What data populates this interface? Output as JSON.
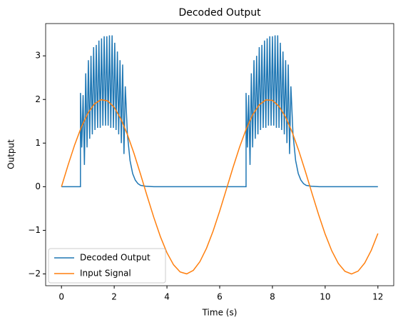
{
  "chart_data": {
    "type": "line",
    "title": "Decoded Output",
    "x_label": "Time (s)",
    "y_label": "Output",
    "xlim": [
      -0.6,
      12.6
    ],
    "ylim": [
      -2.27,
      3.74
    ],
    "xticks": [
      0,
      2,
      4,
      6,
      8,
      10,
      12
    ],
    "yticks": [
      {
        "value": -2,
        "label": "−2"
      },
      {
        "value": -1,
        "label": "−1"
      },
      0,
      1,
      2,
      3
    ],
    "legend": "lower left",
    "series": [
      {
        "name": "Decoded Output",
        "color": "#1f77b4",
        "x": [
          0,
          0.72,
          0.72,
          0.77,
          0.82,
          0.87,
          0.92,
          0.97,
          1.02,
          1.07,
          1.12,
          1.17,
          1.22,
          1.27,
          1.32,
          1.37,
          1.42,
          1.47,
          1.52,
          1.57,
          1.62,
          1.67,
          1.72,
          1.77,
          1.82,
          1.87,
          1.92,
          1.97,
          2.02,
          2.07,
          2.12,
          2.17,
          2.22,
          2.27,
          2.32,
          2.37,
          2.42,
          2.5,
          2.6,
          2.7,
          2.8,
          2.9,
          3.0,
          3.2,
          3.5,
          7.0,
          7.0,
          7.05,
          7.1,
          7.15,
          7.2,
          7.25,
          7.3,
          7.35,
          7.4,
          7.45,
          7.5,
          7.55,
          7.6,
          7.65,
          7.7,
          7.75,
          7.8,
          7.85,
          7.9,
          7.95,
          8.0,
          8.05,
          8.1,
          8.15,
          8.2,
          8.25,
          8.3,
          8.35,
          8.4,
          8.45,
          8.5,
          8.55,
          8.6,
          8.65,
          8.7,
          8.78,
          8.88,
          8.98,
          9.08,
          9.18,
          9.28,
          9.48,
          9.78,
          12
        ],
        "values": [
          0,
          0,
          2.15,
          0.9,
          2.1,
          0.5,
          2.6,
          0.9,
          2.9,
          1.1,
          3.0,
          1.2,
          3.2,
          1.3,
          3.25,
          1.35,
          3.35,
          1.35,
          3.4,
          1.4,
          3.45,
          1.4,
          3.45,
          1.4,
          3.47,
          1.35,
          3.47,
          1.35,
          3.3,
          1.3,
          3.1,
          1.2,
          2.9,
          1.0,
          2.8,
          0.75,
          2.3,
          1.2,
          0.6,
          0.3,
          0.15,
          0.07,
          0.03,
          0.01,
          0,
          0,
          2.15,
          0.9,
          2.1,
          0.5,
          2.6,
          0.9,
          2.9,
          1.1,
          3.0,
          1.2,
          3.2,
          1.3,
          3.25,
          1.35,
          3.35,
          1.35,
          3.4,
          1.4,
          3.45,
          1.4,
          3.45,
          1.4,
          3.47,
          1.35,
          3.47,
          1.35,
          3.3,
          1.3,
          3.1,
          1.2,
          2.9,
          1.0,
          2.8,
          0.75,
          2.3,
          1.2,
          0.6,
          0.3,
          0.15,
          0.07,
          0.03,
          0.01,
          0,
          0
        ]
      },
      {
        "name": "Input Signal",
        "color": "#ff7f0e",
        "x": [
          0,
          0.25,
          0.5,
          0.75,
          1,
          1.25,
          1.5,
          1.75,
          2,
          2.25,
          2.5,
          2.75,
          3,
          3.25,
          3.5,
          3.75,
          4,
          4.25,
          4.5,
          4.75,
          5,
          5.25,
          5.5,
          5.75,
          6,
          6.25,
          6.5,
          6.75,
          7,
          7.25,
          7.5,
          7.75,
          8,
          8.25,
          8.5,
          8.75,
          9,
          9.25,
          9.5,
          9.75,
          10,
          10.25,
          10.5,
          10.75,
          11,
          11.25,
          11.5,
          11.75,
          12
        ],
        "values": [
          0,
          0.495,
          0.959,
          1.363,
          1.683,
          1.898,
          1.995,
          1.968,
          1.819,
          1.556,
          1.197,
          0.763,
          0.282,
          -0.217,
          -0.701,
          -1.143,
          -1.514,
          -1.79,
          -1.955,
          -1.998,
          -1.918,
          -1.718,
          -1.411,
          -1.017,
          -0.559,
          -0.066,
          0.43,
          0.9,
          1.314,
          1.648,
          1.876,
          1.99,
          1.979,
          1.843,
          1.596,
          1.248,
          0.824,
          0.348,
          -0.15,
          -0.639,
          -1.088,
          -1.469,
          -1.759,
          -1.94,
          -2.0,
          -1.935,
          -1.75,
          -1.456,
          -1.073
        ]
      }
    ]
  }
}
